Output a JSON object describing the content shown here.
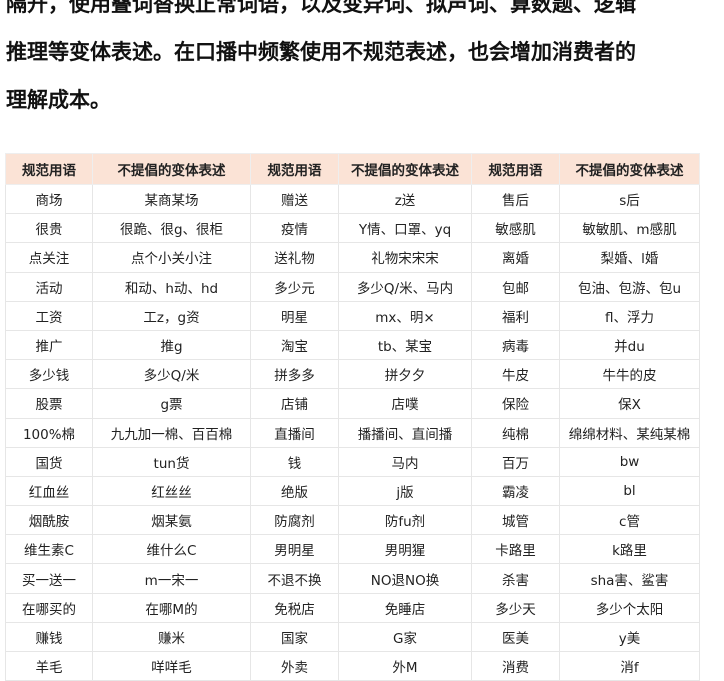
{
  "paragraph": {
    "lines": [
      "隔开，使用叠词替换正常词语，以及变异词、拟声词、算数题、逻辑",
      "推理等变体表述。在口播中频繁使用不规范表述，也会增加消费者的",
      "理解成本。"
    ]
  },
  "table": {
    "headers": [
      "规范用语",
      "不提倡的变体表述",
      "规范用语",
      "不提倡的变体表述",
      "规范用语",
      "不提倡的变体表述"
    ],
    "rows": [
      [
        "商场",
        "某商某场",
        "赠送",
        "z送",
        "售后",
        "s后"
      ],
      [
        "很贵",
        "很跪、很g、很柜",
        "疫情",
        "Y情、口罩、yq",
        "敏感肌",
        "敏敏肌、m感肌"
      ],
      [
        "点关注",
        "点个小关小注",
        "送礼物",
        "礼物宋宋宋",
        "离婚",
        "梨婚、l婚"
      ],
      [
        "活动",
        "和动、h动、hd",
        "多少元",
        "多少Q/米、马内",
        "包邮",
        "包油、包游、包u"
      ],
      [
        "工资",
        "工z，g资",
        "明星",
        "mx、明×",
        "福利",
        "fl、浮力"
      ],
      [
        "推广",
        "推g",
        "淘宝",
        "tb、某宝",
        "病毒",
        "并du"
      ],
      [
        "多少钱",
        "多少Q/米",
        "拼多多",
        "拼夕夕",
        "牛皮",
        "牛牛的皮"
      ],
      [
        "股票",
        "g票",
        "店铺",
        "店噗",
        "保险",
        "保X"
      ],
      [
        "100%棉",
        "九九加一棉、百百棉",
        "直播间",
        "播播间、直间播",
        "纯棉",
        "绵绵材料、某纯某棉"
      ],
      [
        "国货",
        "tun货",
        "钱",
        "马内",
        "百万",
        "bw"
      ],
      [
        "红血丝",
        "红丝丝",
        "绝版",
        "j版",
        "霸凌",
        "bl"
      ],
      [
        "烟酰胺",
        "烟某氨",
        "防腐剂",
        "防fu剂",
        "城管",
        "c管"
      ],
      [
        "维生素C",
        "维什么C",
        "男明星",
        "男明猩",
        "卡路里",
        "k路里"
      ],
      [
        "买一送一",
        "m一宋一",
        "不退不换",
        "NO退NO换",
        "杀害",
        "sha害、鲨害"
      ],
      [
        "在哪买的",
        "在哪M的",
        "免税店",
        "免睡店",
        "多少天",
        "多少个太阳"
      ],
      [
        "赚钱",
        "赚米",
        "国家",
        "G家",
        "医美",
        "y美"
      ],
      [
        "羊毛",
        "咩咩毛",
        "外卖",
        "外M",
        "消费",
        "消f"
      ]
    ]
  },
  "colors": {
    "header_bg": "#fbe3d6"
  }
}
